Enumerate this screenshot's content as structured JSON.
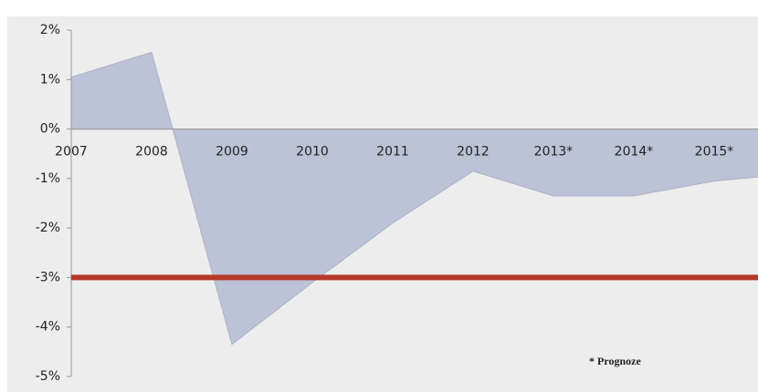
{
  "chart_data": {
    "type": "area",
    "categories": [
      "2007",
      "2008",
      "2009",
      "2010",
      "2011",
      "2012",
      "2013*",
      "2014*",
      "2015*",
      null
    ],
    "values": [
      1.05,
      1.55,
      -4.35,
      -3.1,
      -1.9,
      -0.85,
      -1.35,
      -1.35,
      -1.05,
      -0.9
    ],
    "color": "#bcc3d6",
    "ylim": [
      -5,
      2
    ],
    "yticks": [
      {
        "value": -5,
        "label": "-5%"
      },
      {
        "value": -4,
        "label": "-4%"
      },
      {
        "value": -3,
        "label": "-3%"
      },
      {
        "value": -2,
        "label": "-2%"
      },
      {
        "value": -1,
        "label": "-1%"
      },
      {
        "value": 0,
        "label": "0%"
      },
      {
        "value": 1,
        "label": "1%"
      },
      {
        "value": 2,
        "label": "2%"
      }
    ],
    "reference_line": {
      "value": -3,
      "color": "#b8392a"
    },
    "annotation": "* Prognoze"
  }
}
